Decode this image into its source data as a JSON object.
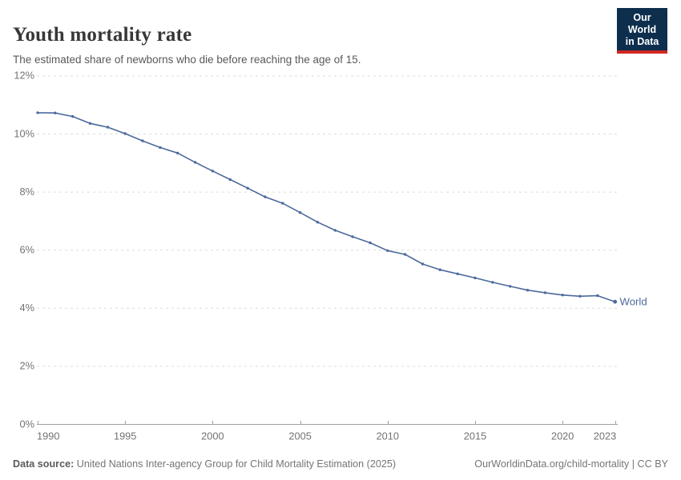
{
  "header": {
    "title": "Youth mortality rate",
    "subtitle": "The estimated share of newborns who die before reaching the age of 15."
  },
  "logo": {
    "line1": "Our World",
    "line2": "in Data",
    "bg_color": "#0e2e4e",
    "accent_color": "#d02620"
  },
  "chart_data": {
    "type": "line",
    "title": "Youth mortality rate",
    "xlabel": "",
    "ylabel": "",
    "x": [
      1990,
      1991,
      1992,
      1993,
      1994,
      1995,
      1996,
      1997,
      1998,
      1999,
      2000,
      2001,
      2002,
      2003,
      2004,
      2005,
      2006,
      2007,
      2008,
      2009,
      2010,
      2011,
      2012,
      2013,
      2014,
      2015,
      2016,
      2017,
      2018,
      2019,
      2020,
      2021,
      2022,
      2023
    ],
    "series": [
      {
        "name": "World",
        "color": "#4c6a9c",
        "values": [
          10.72,
          10.71,
          10.59,
          10.35,
          10.22,
          10.0,
          9.75,
          9.52,
          9.33,
          9.01,
          8.71,
          8.42,
          8.12,
          7.82,
          7.6,
          7.28,
          6.95,
          6.67,
          6.45,
          6.24,
          5.97,
          5.84,
          5.51,
          5.31,
          5.17,
          5.03,
          4.88,
          4.74,
          4.61,
          4.52,
          4.44,
          4.4,
          4.42,
          4.21
        ]
      }
    ],
    "ylim": [
      0,
      12
    ],
    "yticks": [
      0,
      2,
      4,
      6,
      8,
      10,
      12
    ],
    "ytick_suffix": "%",
    "xticks": [
      1990,
      1995,
      2000,
      2005,
      2010,
      2015,
      2020,
      2023
    ],
    "grid": "horizontal-dashed",
    "legend_position": "end-of-line",
    "colors": {
      "gridline": "#dcdcdc",
      "axis": "#a0a0a0",
      "tick_label": "#737373"
    }
  },
  "footer": {
    "datasource_label": "Data source:",
    "datasource_text": "United Nations Inter-agency Group for Child Mortality Estimation (2025)",
    "link_text": "OurWorldinData.org/child-mortality | CC BY"
  }
}
